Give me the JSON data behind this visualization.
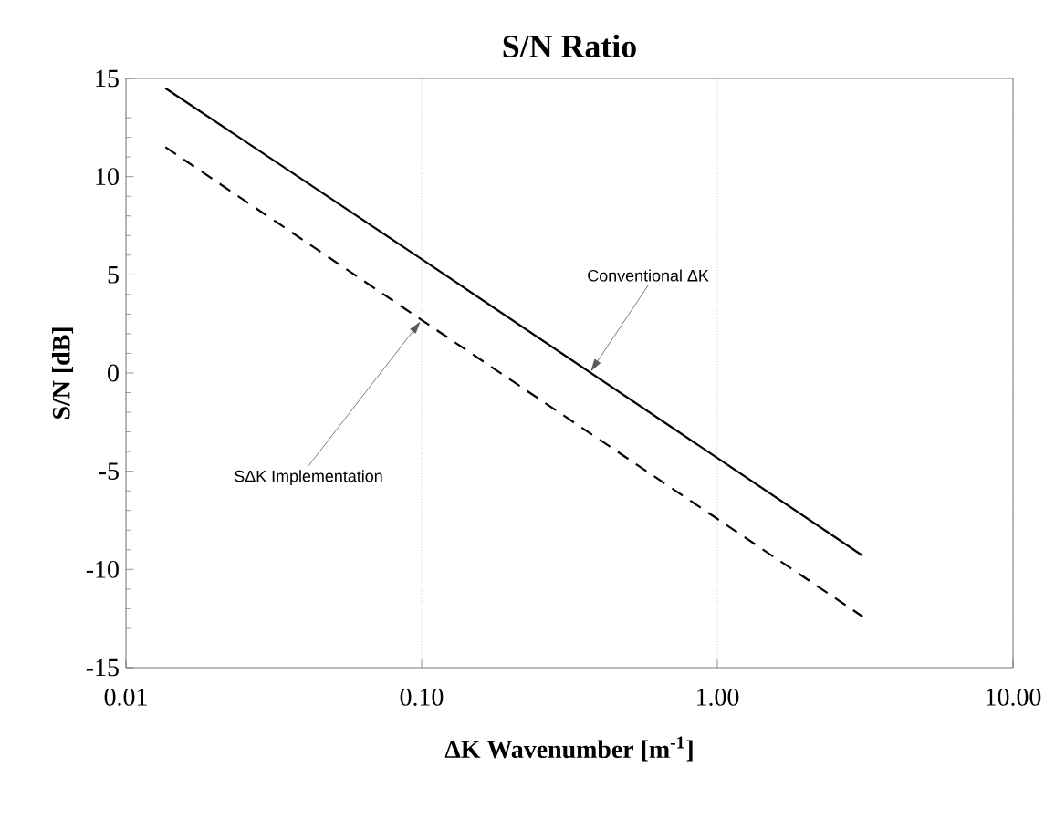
{
  "chart_data": {
    "type": "line",
    "title": "S/N Ratio",
    "xlabel": "ΔK Wavenumber  [m$^{-1}$]",
    "ylabel": "S/N  [dB]",
    "log": "x",
    "grid": "x",
    "xlim": [
      0.01,
      10
    ],
    "ylim": [
      -15,
      15
    ],
    "xticks": [
      {
        "value": 0.01,
        "label": "0.01"
      },
      {
        "value": 0.1,
        "label": "0.10"
      },
      {
        "value": 1,
        "label": "1.00"
      },
      {
        "value": 10,
        "label": "10.00"
      }
    ],
    "yticks": [
      -15,
      -10,
      -5,
      0,
      5,
      10,
      15
    ],
    "series": [
      {
        "color": "#000000",
        "line_style": "solid",
        "x": [
          0.0136,
          0.1,
          3.1
        ],
        "values": [
          14.5,
          5.8,
          -9.3
        ]
      },
      {
        "color": "#000000",
        "line_style": "dashed",
        "x": [
          0.0136,
          0.1,
          3.1
        ],
        "values": [
          11.5,
          2.7,
          -12.4
        ]
      }
    ],
    "annotations": [
      {
        "text": "Conventional ΔK",
        "x": 0.37,
        "y": 0
      },
      {
        "text": "SΔK Implementation",
        "x": 0.1,
        "y": 2.7
      }
    ]
  }
}
